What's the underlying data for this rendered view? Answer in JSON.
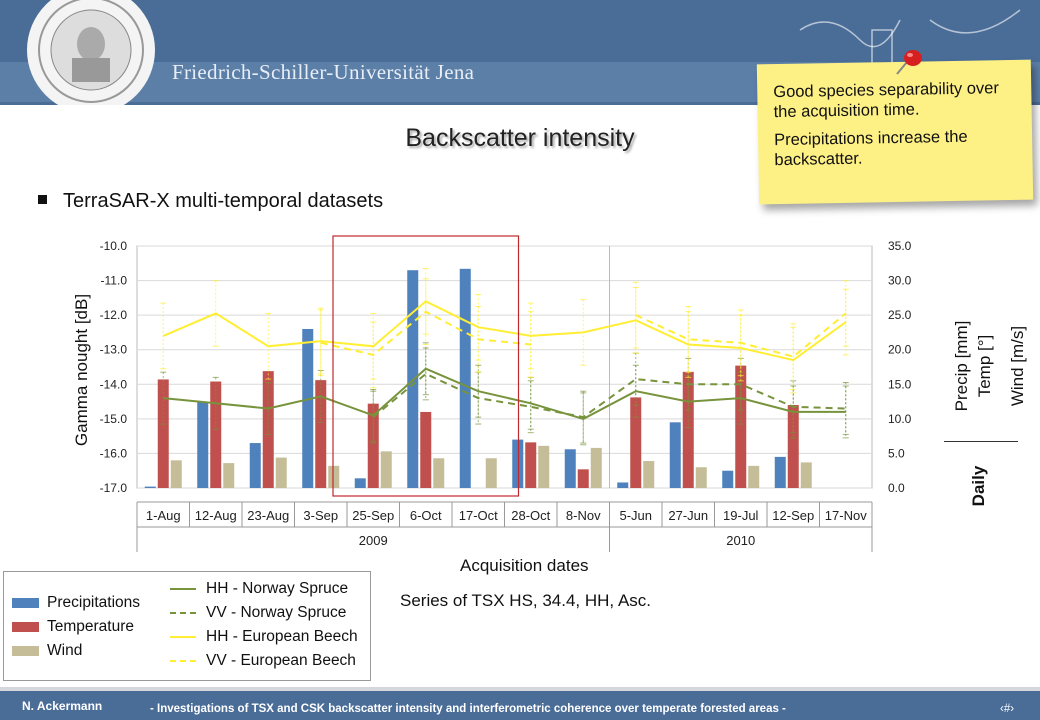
{
  "header": {
    "university": "Friedrich-Schiller-Universität Jena"
  },
  "title": "Backscatter intensity",
  "bullet": "TerraSAR-X multi-temporal datasets",
  "note": {
    "line1": "Good species separability over the acquisition time.",
    "line2": "Precipitations increase the backscatter."
  },
  "footer": {
    "author": "N. Ackermann",
    "title": "- Investigations of TSX and CSK backscatter intensity and interferometric coherence over temperate forested areas -",
    "page": "‹#›"
  },
  "series_caption": "Series of TSX HS, 34.4, HH, Asc.",
  "colors": {
    "precip": "#4f81bd",
    "temp": "#c0504d",
    "wind": "#c4bd97",
    "spruce": "#77933c",
    "beech": "#ffee33",
    "highlight": "#c0282d",
    "header": "#4a6d98"
  },
  "chart_data": {
    "type": "bar",
    "xlabel": "Acquisition dates",
    "ylabel": "Gamma nought [dB]",
    "ylabel_right": [
      "Precip [mm]",
      "Temp [°]",
      "Wind [m/s]"
    ],
    "right_caption": "Daily",
    "categories": [
      "1-Aug",
      "12-Aug",
      "23-Aug",
      "3-Sep",
      "25-Sep",
      "6-Oct",
      "17-Oct",
      "28-Oct",
      "8-Nov",
      "5-Jun",
      "27-Jun",
      "19-Jul",
      "12-Sep",
      "17-Nov"
    ],
    "year_groups": [
      {
        "label": "2009",
        "count": 9
      },
      {
        "label": "2010",
        "count": 5
      }
    ],
    "ylim_left": [
      -17.0,
      -10.0
    ],
    "yticks_left": [
      "-10.0",
      "-11.0",
      "-12.0",
      "-13.0",
      "-14.0",
      "-15.0",
      "-16.0",
      "-17.0"
    ],
    "ylim_right": [
      0,
      35
    ],
    "yticks_right": [
      "35.0",
      "30.0",
      "25.0",
      "20.0",
      "15.0",
      "10.0",
      "5.0",
      "0.0"
    ],
    "bar_series": [
      {
        "name": "Precipitations",
        "axis": "right",
        "values": [
          0.2,
          12.5,
          6.5,
          23.0,
          1.4,
          31.5,
          31.7,
          7.0,
          5.6,
          0.8,
          9.5,
          2.5,
          4.5,
          null
        ]
      },
      {
        "name": "Temperature",
        "axis": "right",
        "values": [
          15.7,
          15.4,
          16.9,
          15.6,
          12.2,
          11.0,
          null,
          6.6,
          2.7,
          13.1,
          16.8,
          17.7,
          12.0,
          null
        ]
      },
      {
        "name": "Wind",
        "axis": "right",
        "values": [
          4.0,
          3.6,
          4.4,
          3.2,
          5.3,
          4.3,
          4.3,
          6.1,
          5.8,
          3.9,
          3.0,
          3.2,
          3.7,
          null
        ]
      }
    ],
    "line_series": [
      {
        "name": "HH - Norway Spruce",
        "axis": "left",
        "style": "solid",
        "values": [
          -14.4,
          -14.55,
          -14.7,
          -14.35,
          -14.9,
          -13.55,
          -14.2,
          -14.55,
          -15.0,
          -14.2,
          -14.5,
          -14.4,
          -14.8,
          -14.8
        ]
      },
      {
        "name": "VV - Norway Spruce",
        "axis": "left",
        "style": "dashed",
        "values": [
          null,
          null,
          null,
          null,
          -14.95,
          -13.7,
          -14.4,
          -14.65,
          -14.95,
          -13.85,
          -14.0,
          -14.0,
          -14.65,
          -14.7
        ]
      },
      {
        "name": "HH - European Beech",
        "axis": "left",
        "style": "solid",
        "values": [
          -12.6,
          -11.95,
          -12.9,
          -12.75,
          -12.9,
          -11.6,
          -12.35,
          -12.6,
          -12.5,
          -12.15,
          -12.85,
          -12.95,
          -13.3,
          -12.2
        ]
      },
      {
        "name": "VV - European Beech",
        "axis": "left",
        "style": "dashed",
        "values": [
          null,
          null,
          null,
          -12.8,
          -13.15,
          -11.9,
          -12.7,
          -12.85,
          null,
          -12.0,
          -12.7,
          -12.8,
          -13.2,
          -11.95
        ]
      }
    ],
    "grid": true,
    "legend_position": "bottom-left"
  }
}
